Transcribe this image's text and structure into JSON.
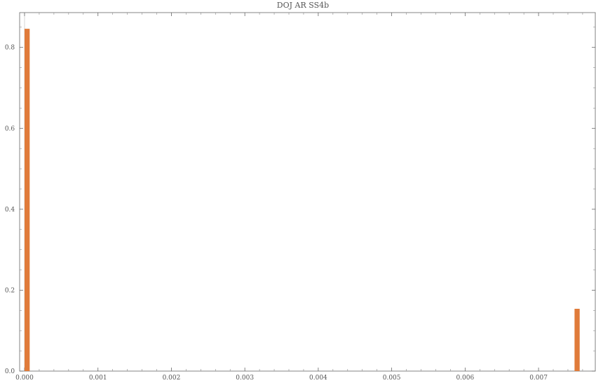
{
  "chart_data": {
    "type": "bar",
    "title": "DOJ AR SS4b",
    "xlabel": "",
    "ylabel": "",
    "xlim": [
      0.0,
      0.00762
    ],
    "ylim": [
      0.0,
      0.886
    ],
    "x_ticks": [
      "0.000",
      "0.001",
      "0.002",
      "0.003",
      "0.004",
      "0.005",
      "0.006",
      "0.007"
    ],
    "x_tick_values": [
      0.0,
      0.001,
      0.002,
      0.003,
      0.004,
      0.005,
      0.006,
      0.007
    ],
    "y_ticks": [
      "0.0",
      "0.2",
      "0.4",
      "0.6",
      "0.8"
    ],
    "y_tick_values": [
      0.0,
      0.2,
      0.4,
      0.6,
      0.8
    ],
    "bars": [
      {
        "x_start": 0.0,
        "x_end": 7e-05,
        "value": 0.846
      },
      {
        "x_start": 0.00749,
        "x_end": 0.00756,
        "value": 0.154
      }
    ],
    "colors": {
      "bar": "#e07b3a",
      "frame": "#666666",
      "text": "#555555"
    },
    "grid": false
  }
}
